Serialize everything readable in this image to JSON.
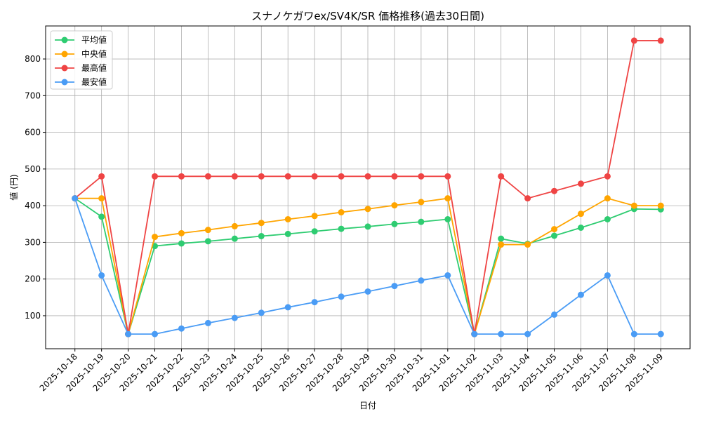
{
  "chart_data": {
    "type": "line",
    "title": "スナノケガワex/SV4K/SR 価格推移(過去30日間)",
    "xlabel": "日付",
    "ylabel": "値 (円)",
    "categories": [
      "2025-10-18",
      "2025-10-19",
      "2025-10-20",
      "2025-10-21",
      "2025-10-22",
      "2025-10-23",
      "2025-10-24",
      "2025-10-25",
      "2025-10-26",
      "2025-10-27",
      "2025-10-28",
      "2025-10-29",
      "2025-10-30",
      "2025-10-31",
      "2025-11-01",
      "2025-11-02",
      "2025-11-03",
      "2025-11-04",
      "2025-11-05",
      "2025-11-06",
      "2025-11-07",
      "2025-11-08",
      "2025-11-09"
    ],
    "series": [
      {
        "name": "平均値",
        "color": "#2ecc71",
        "values": [
          420,
          370,
          50,
          290,
          297,
          303,
          310,
          317,
          323,
          330,
          337,
          343,
          350,
          356,
          363,
          50,
          310,
          296,
          318,
          340,
          363,
          391,
          390
        ]
      },
      {
        "name": "中央値",
        "color": "#ffa500",
        "values": [
          420,
          420,
          50,
          315,
          325,
          334,
          344,
          353,
          363,
          372,
          382,
          391,
          401,
          410,
          420,
          50,
          294,
          294,
          336,
          378,
          420,
          400,
          400
        ]
      },
      {
        "name": "最高値",
        "color": "#ef4444",
        "values": [
          420,
          480,
          50,
          480,
          480,
          480,
          480,
          480,
          480,
          480,
          480,
          480,
          480,
          480,
          480,
          50,
          480,
          420,
          440,
          460,
          480,
          850,
          850
        ]
      },
      {
        "name": "最安値",
        "color": "#4a9cf5",
        "values": [
          420,
          210,
          50,
          50,
          65,
          80,
          94,
          108,
          123,
          137,
          152,
          166,
          181,
          196,
          210,
          50,
          50,
          50,
          103,
          157,
          210,
          50,
          50
        ]
      }
    ],
    "ylim": [
      10,
      890
    ],
    "yticks": [
      100,
      200,
      300,
      400,
      500,
      600,
      700,
      800
    ],
    "grid": true,
    "legend": "upper left"
  }
}
